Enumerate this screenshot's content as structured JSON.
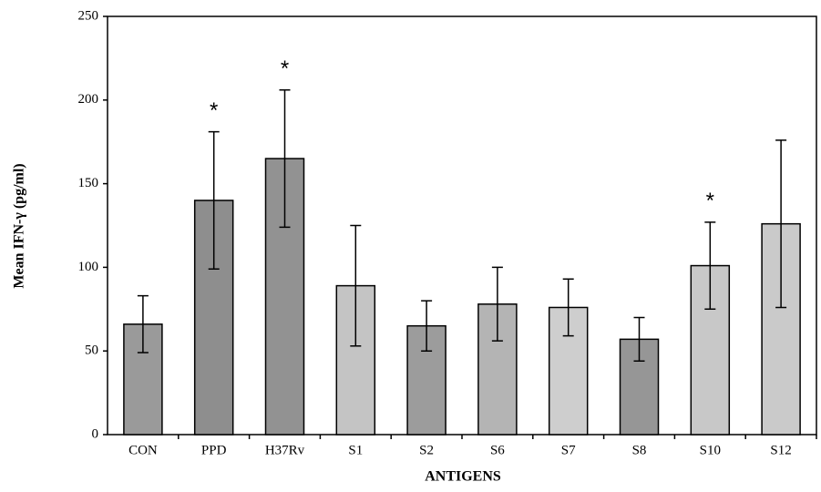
{
  "chart_data": {
    "type": "bar",
    "y_label": "Mean IFN-γ (pg/ml)",
    "x_label": "ANTIGENS",
    "categories": [
      "CON",
      "PPD",
      "H37Rv",
      "S1",
      "S2",
      "S6",
      "S7",
      "S8",
      "S10",
      "S12"
    ],
    "values": [
      66,
      140,
      165,
      89,
      65,
      78,
      76,
      57,
      101,
      126
    ],
    "errors": [
      17,
      41,
      41,
      36,
      15,
      22,
      17,
      13,
      26,
      50
    ],
    "annotations": [
      null,
      "*",
      "*",
      null,
      null,
      null,
      null,
      null,
      "*",
      null
    ],
    "colors": [
      "#9a9a9a",
      "#8e8e8e",
      "#929292",
      "#c4c4c4",
      "#9c9c9c",
      "#b4b4b4",
      "#cecece",
      "#969696",
      "#c8c8c8",
      "#cacaca"
    ],
    "ylim": [
      0,
      250
    ],
    "yticks": [
      0,
      50,
      100,
      150,
      200,
      250
    ]
  }
}
